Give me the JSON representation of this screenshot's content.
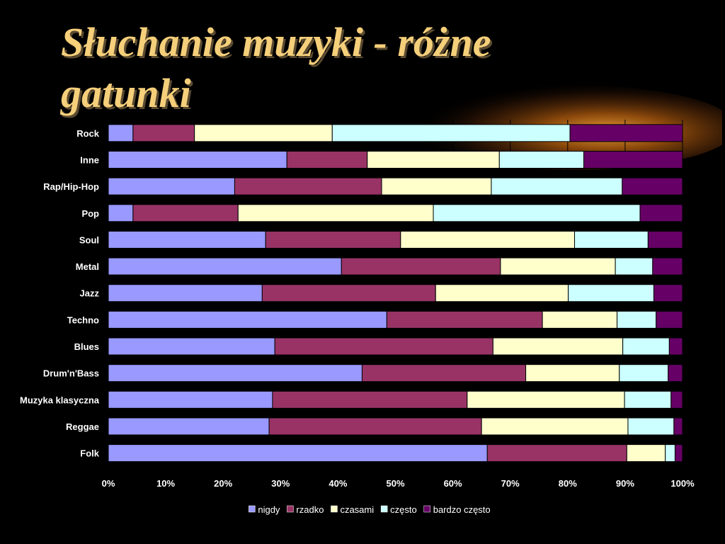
{
  "title": "Słuchanie muzyki - różne gatunki",
  "chart_data": {
    "type": "bar",
    "orientation": "horizontal",
    "stacked": "percent",
    "categories": [
      "Rock",
      "Inne",
      "Rap/Hip-Hop",
      "Pop",
      "Soul",
      "Metal",
      "Jazz",
      "Techno",
      "Blues",
      "Drum'n'Bass",
      "Muzyka klasyczna",
      "Reggae",
      "Folk"
    ],
    "series": [
      {
        "name": "nigdy",
        "color": "#9999ff",
        "values": [
          4.3,
          31.1,
          22,
          4.3,
          27.4,
          40.6,
          26.8,
          48.5,
          29,
          44.2,
          28.6,
          28,
          66
        ]
      },
      {
        "name": "rzadko",
        "color": "#993366",
        "values": [
          10.7,
          14,
          25.6,
          18.3,
          23.5,
          27.7,
          30.2,
          27.1,
          38,
          28.5,
          33.9,
          37,
          24.3
        ]
      },
      {
        "name": "czasami",
        "color": "#ffffcc",
        "values": [
          24,
          23,
          19.1,
          34,
          30.3,
          20,
          23.1,
          13,
          22.6,
          16.3,
          27.4,
          25.5,
          6.7
        ]
      },
      {
        "name": "często",
        "color": "#ccffff",
        "values": [
          41.4,
          14.7,
          22.8,
          36,
          12.8,
          6.5,
          14.9,
          6.8,
          8.1,
          8.5,
          8.1,
          8,
          1.7
        ]
      },
      {
        "name": "bardzo często",
        "color": "#660066",
        "values": [
          19.6,
          17.2,
          10.5,
          7.4,
          6,
          5.2,
          5,
          4.6,
          2.3,
          2.5,
          2,
          1.5,
          1.3
        ]
      }
    ],
    "x_ticks": [
      "0%",
      "10%",
      "20%",
      "30%",
      "40%",
      "50%",
      "60%",
      "70%",
      "80%",
      "90%",
      "100%"
    ],
    "xlim": [
      0,
      100
    ],
    "grid": true,
    "legend_position": "bottom"
  }
}
